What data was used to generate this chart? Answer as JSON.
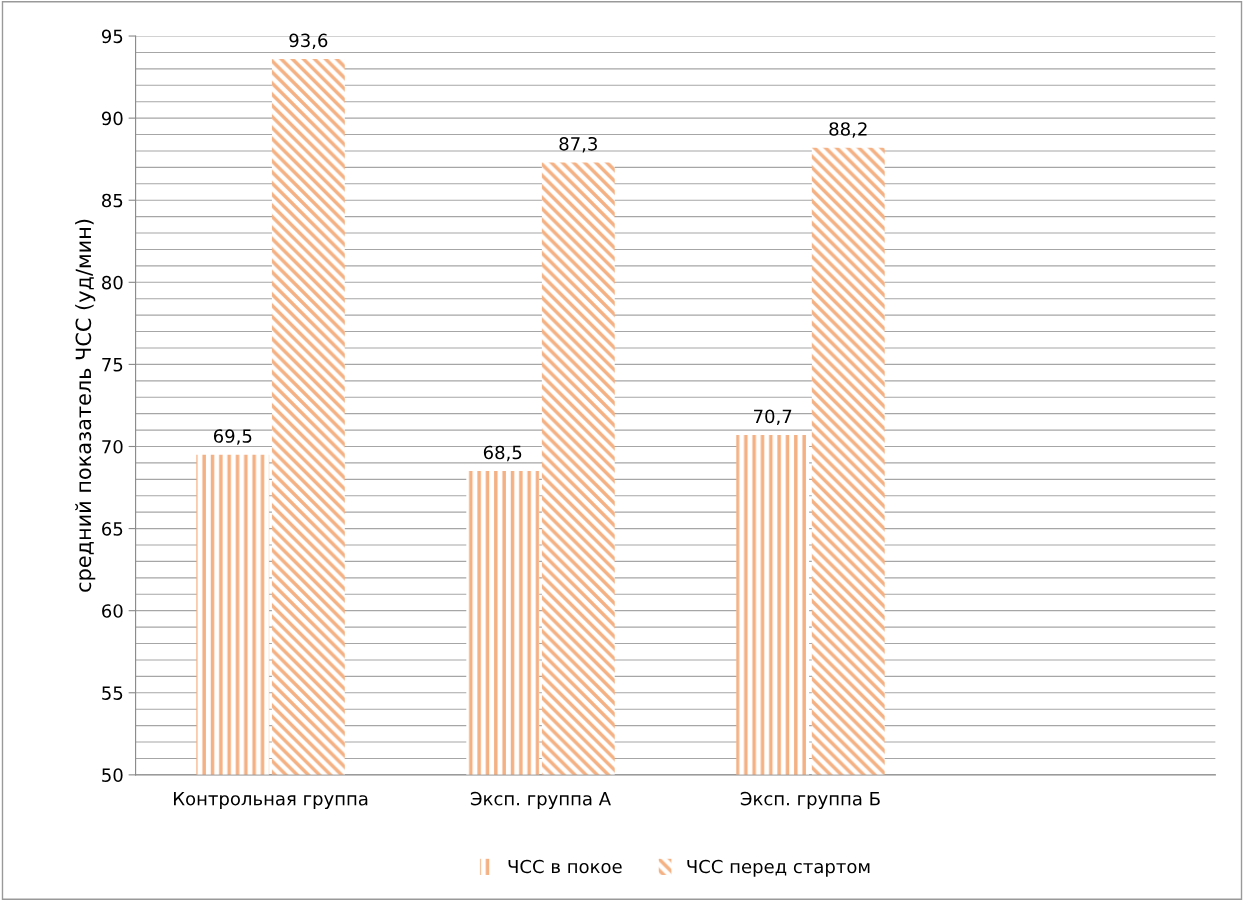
{
  "chart_data": {
    "type": "bar",
    "ylabel": "средний показатель ЧСС (уд/мин)",
    "categories": [
      "Контрольная группа",
      "Эксп. группа А",
      "Эксп. группа Б",
      null
    ],
    "series": [
      {
        "name": "ЧСС в покое",
        "color": "#f4b183",
        "values": [
          69.5,
          68.5,
          70.7,
          null
        ],
        "value_labels": [
          "69,5",
          "68,5",
          "70,7",
          null
        ]
      },
      {
        "name": "ЧСС перед стартом",
        "color": "#f4b183",
        "values": [
          93.6,
          87.3,
          88.2,
          null
        ],
        "value_labels": [
          "93,6",
          "87,3",
          "88,2",
          null
        ]
      }
    ],
    "ylim": [
      50,
      95
    ],
    "yticks": [
      50,
      55,
      60,
      65,
      70,
      75,
      80,
      85,
      90,
      95
    ],
    "grid": "y",
    "legend": "bottom"
  }
}
